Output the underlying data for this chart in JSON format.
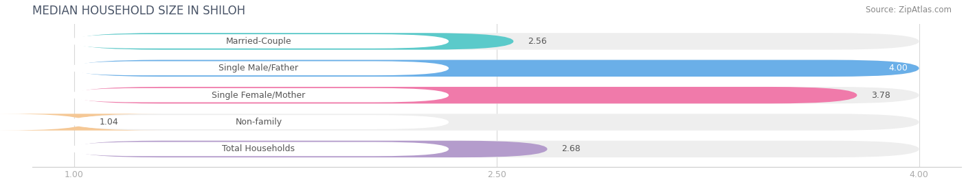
{
  "title": "MEDIAN HOUSEHOLD SIZE IN SHILOH",
  "source": "Source: ZipAtlas.com",
  "categories": [
    "Married-Couple",
    "Single Male/Father",
    "Single Female/Mother",
    "Non-family",
    "Total Households"
  ],
  "values": [
    2.56,
    4.0,
    3.78,
    1.04,
    2.68
  ],
  "bar_colors": [
    "#5bcaca",
    "#6aafe8",
    "#f07aaa",
    "#f5c896",
    "#b49ccc"
  ],
  "xmin": 1.0,
  "xmax": 4.0,
  "xticks": [
    1.0,
    2.5,
    4.0
  ],
  "xtick_labels": [
    "1.00",
    "2.50",
    "4.00"
  ],
  "title_fontsize": 12,
  "label_fontsize": 9,
  "value_fontsize": 9,
  "source_fontsize": 8.5,
  "bg_color": "#ffffff",
  "bar_bg_color": "#eeeeee",
  "label_pill_color": "#ffffff",
  "label_text_color": "#555555",
  "title_color": "#4a5568",
  "source_color": "#888888",
  "axis_color": "#cccccc"
}
